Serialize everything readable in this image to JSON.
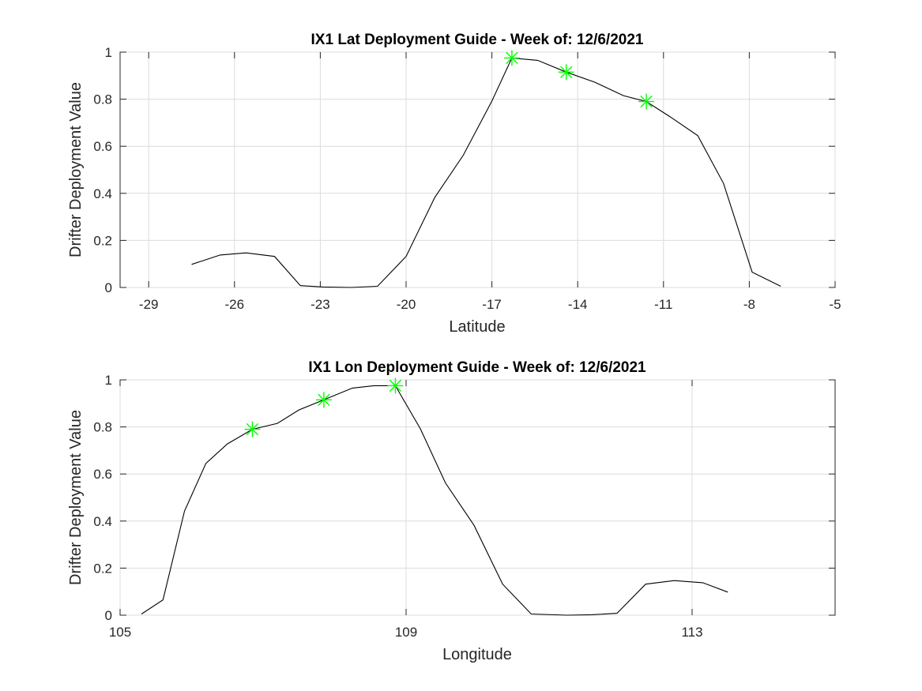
{
  "colors": {
    "line": "#000000",
    "marker": "#00ff00",
    "grid": "#dcdcdc",
    "axis": "#262626"
  },
  "chart_data": [
    {
      "type": "line",
      "title": "IX1 Lat Deployment Guide - Week of: 12/6/2021",
      "xlabel": "Latitude",
      "ylabel": "Drifter Deployment Value",
      "xlim": [
        -30,
        -5
      ],
      "ylim": [
        0,
        1
      ],
      "xticks": [
        -29,
        -26,
        -23,
        -20,
        -17,
        -14,
        -11,
        -8,
        -5
      ],
      "yticks": [
        0,
        0.2,
        0.4,
        0.6,
        0.8,
        1
      ],
      "xtick_labels": [
        "-29",
        "-26",
        "-23",
        "-20",
        "-17",
        "-14",
        "-11",
        "-8",
        "-5"
      ],
      "ytick_labels": [
        "0",
        "0.2",
        "0.4",
        "0.6",
        "0.8",
        "1"
      ],
      "grid": true,
      "series": [
        {
          "x": [
            -27.5,
            -26.5,
            -25.6,
            -24.6,
            -23.7,
            -22.9,
            -21.9,
            -21.0,
            -20.0,
            -19.0,
            -18.0,
            -17.0,
            -16.3,
            -15.4,
            -14.4,
            -13.4,
            -12.4,
            -11.6,
            -10.8,
            -9.8,
            -8.9,
            -7.9,
            -6.9
          ],
          "y": [
            0.098,
            0.138,
            0.147,
            0.132,
            0.008,
            0.002,
            0.0,
            0.005,
            0.132,
            0.382,
            0.562,
            0.792,
            0.975,
            0.965,
            0.915,
            0.872,
            0.815,
            0.79,
            0.728,
            0.645,
            0.442,
            0.065,
            0.005
          ]
        }
      ],
      "markers": {
        "symbol": "asterisk",
        "x": [
          -16.3,
          -14.4,
          -11.6
        ],
        "y": [
          0.975,
          0.915,
          0.79
        ]
      }
    },
    {
      "type": "line",
      "title": "IX1 Lon Deployment Guide - Week of: 12/6/2021",
      "xlabel": "Longitude",
      "ylabel": "Drifter Deployment Value",
      "xlim": [
        105,
        115
      ],
      "ylim": [
        0,
        1
      ],
      "xticks": [
        105,
        109,
        113
      ],
      "yticks": [
        0,
        0.2,
        0.4,
        0.6,
        0.8,
        1
      ],
      "xtick_labels": [
        "105",
        "109",
        "113"
      ],
      "ytick_labels": [
        "0",
        "0.2",
        "0.4",
        "0.6",
        "0.8",
        "1"
      ],
      "grid": true,
      "series": [
        {
          "x": [
            105.3,
            105.6,
            105.9,
            106.2,
            106.5,
            106.85,
            107.2,
            107.5,
            107.85,
            108.25,
            108.55,
            108.85,
            109.2,
            109.55,
            109.95,
            110.35,
            110.75,
            111.25,
            111.6,
            111.95,
            112.35,
            112.75,
            113.15,
            113.5
          ],
          "y": [
            0.005,
            0.065,
            0.442,
            0.645,
            0.728,
            0.79,
            0.815,
            0.872,
            0.915,
            0.965,
            0.975,
            0.975,
            0.792,
            0.562,
            0.382,
            0.132,
            0.005,
            0.0,
            0.002,
            0.008,
            0.132,
            0.147,
            0.138,
            0.098
          ]
        }
      ],
      "markers": {
        "symbol": "asterisk",
        "x": [
          106.85,
          107.85,
          108.85
        ],
        "y": [
          0.79,
          0.915,
          0.975
        ]
      }
    }
  ]
}
